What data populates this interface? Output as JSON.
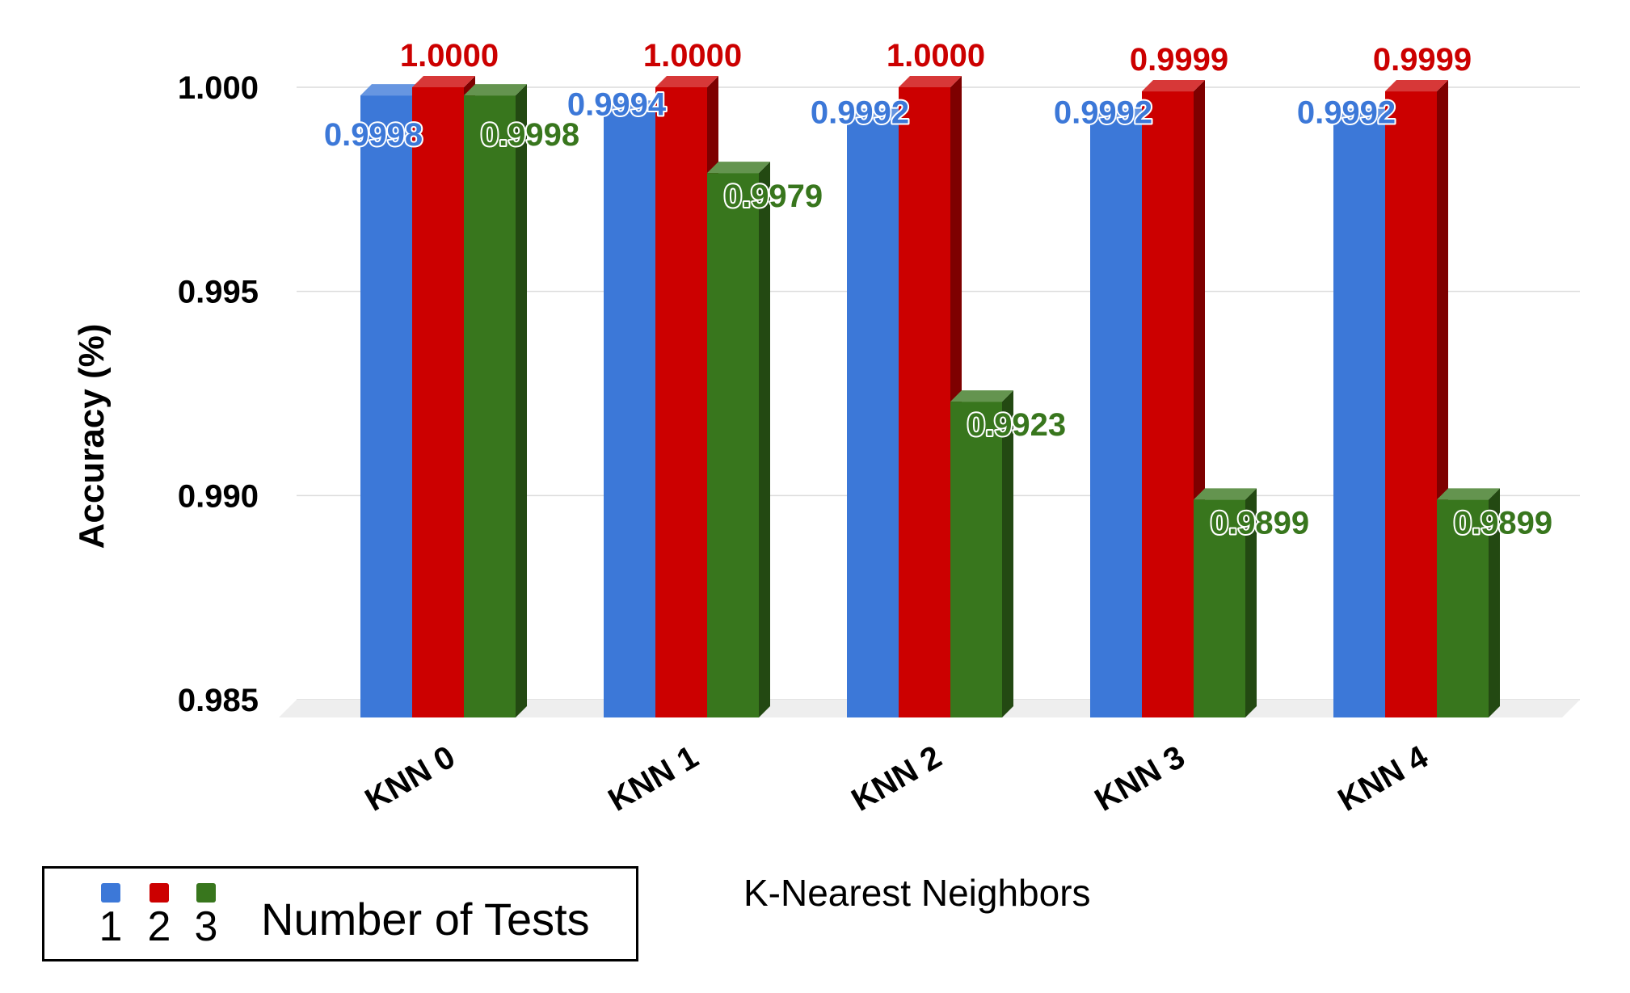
{
  "chart_data": {
    "type": "bar",
    "ylabel": "Accuracy (%)",
    "xlabel": "K-Nearest Neighbors",
    "categories": [
      "KNN 0",
      "KNN 1",
      "KNN 2",
      "KNN 3",
      "KNN 4"
    ],
    "ylim": [
      0.985,
      1.0
    ],
    "yticks": [
      "1.000",
      "0.995",
      "0.990",
      "0.985"
    ],
    "grid": true,
    "legend": {
      "title": "Number of Tests",
      "placement": "bottom-left"
    },
    "series": [
      {
        "name": "1",
        "color": "#3c78d8",
        "values": [
          0.9998,
          0.9994,
          0.9992,
          0.9992,
          0.9992
        ],
        "labels": [
          "0.9998",
          "0.9994",
          "0.9992",
          "0.9992",
          "0.9992"
        ]
      },
      {
        "name": "2",
        "color": "#cc0000",
        "values": [
          1.0,
          1.0,
          1.0,
          0.9999,
          0.9999
        ],
        "labels": [
          "1.0000",
          "1.0000",
          "1.0000",
          "0.9999",
          "0.9999"
        ]
      },
      {
        "name": "3",
        "color": "#38761d",
        "values": [
          0.9998,
          0.9979,
          0.9923,
          0.9899,
          0.9899
        ],
        "labels": [
          "0.9998",
          "0.9979",
          "0.9923",
          "0.9899",
          "0.9899"
        ]
      }
    ]
  }
}
